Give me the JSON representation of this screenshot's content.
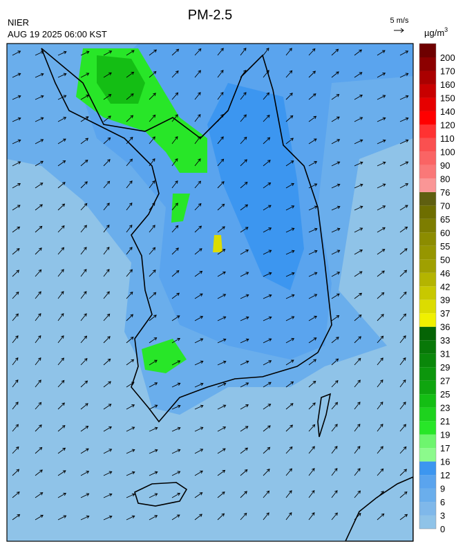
{
  "header": {
    "title": "PM-2.5",
    "source": "NIER",
    "time": "AUG 19 2025 06:00 KST",
    "vector_scale": "5 m/s"
  },
  "colorbar": {
    "unit": {
      "base": "µg/m",
      "sup": "3"
    },
    "labels": [
      "0",
      "3",
      "6",
      "9",
      "12",
      "16",
      "17",
      "19",
      "21",
      "23",
      "25",
      "27",
      "29",
      "31",
      "33",
      "36",
      "37",
      "39",
      "42",
      "46",
      "50",
      "55",
      "60",
      "65",
      "70",
      "76",
      "80",
      "90",
      "100",
      "110",
      "120",
      "140",
      "150",
      "160",
      "170",
      "200"
    ],
    "colors": [
      "#8fc3e8",
      "#7fb8ea",
      "#6aaeec",
      "#5aa4ee",
      "#3c96f0",
      "#8cfa8c",
      "#6ef56e",
      "#28e628",
      "#1ed21e",
      "#14be14",
      "#0fa50f",
      "#0c960c",
      "#0a870a",
      "#087808",
      "#056405",
      "#f0f000",
      "#dcdc00",
      "#c8c800",
      "#b4b400",
      "#a0a000",
      "#969600",
      "#8c8c00",
      "#7d7d00",
      "#6e6e00",
      "#5f5f10",
      "#fa9696",
      "#fa7878",
      "#fa6464",
      "#fa5050",
      "#ff3232",
      "#ff0000",
      "#e60000",
      "#c80000",
      "#aa0000",
      "#8c0000",
      "#6e0000"
    ]
  }
}
